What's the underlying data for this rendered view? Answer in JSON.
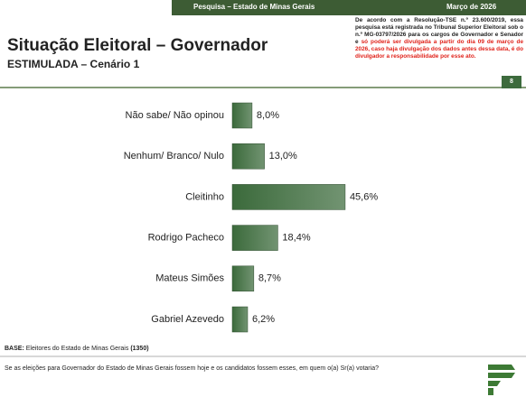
{
  "header": {
    "survey": "Pesquisa – Estado de Minas Gerais",
    "date": "Março de 2026",
    "note_black": "De acordo com a Resolução-TSE n.º 23.600/2019, essa pesquisa está registrada no Tribunal Superior Eleitoral sob o n.º MG-03797/2026 para os cargos de Governador e Senador e",
    "note_red": "só poderá ser divulgada a partir do dia 09 de março de 2026, caso haja divulgação dos dados antes dessa data, é do divulgador a responsabilidade por esse ato.",
    "page": "8"
  },
  "chart_data": {
    "type": "hbar",
    "title": "Situação Eleitoral – Governador",
    "subtitle": "ESTIMULADA – Cenário 1",
    "categories": [
      "Não sabe/ Não opinou",
      "Nenhum/ Branco/ Nulo",
      "Cleitinho",
      "Rodrigo Pacheco",
      "Mateus Simões",
      "Gabriel Azevedo"
    ],
    "values": [
      8.0,
      13.0,
      45.6,
      18.4,
      8.7,
      6.2
    ],
    "value_labels": [
      "8,0%",
      "13,0%",
      "45,6%",
      "18,4%",
      "8,7%",
      "6,2%"
    ],
    "color": "#3b6a3b",
    "xlim": [
      0,
      50
    ]
  },
  "footer": {
    "base_label": "BASE:",
    "base_text": "Eleitores do Estado de Minas Gerais",
    "base_n": "(1350)",
    "question": "Se as eleições para Governador do Estado de Minas Gerais fossem hoje e os candidatos fossem esses, em quem o(a) Sr(a) votaria?"
  }
}
